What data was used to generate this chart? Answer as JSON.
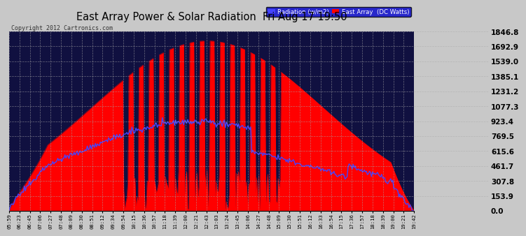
{
  "title": "East Array Power & Solar Radiation  Fri Aug 17 19:50",
  "copyright": "Copyright 2012 Cartronics.com",
  "legend_radiation": "Radiation (w/m2)",
  "legend_array": "East Array  (DC Watts)",
  "y_ticks": [
    0.0,
    153.9,
    307.8,
    461.7,
    615.6,
    769.5,
    923.4,
    1077.3,
    1231.2,
    1385.1,
    1539.0,
    1692.9,
    1846.8
  ],
  "y_max": 1846.8,
  "grid_color": "#888888",
  "red_color": "#ff0000",
  "blue_color": "#4444ff",
  "x_labels": [
    "05:59",
    "06:23",
    "06:45",
    "07:06",
    "07:27",
    "07:48",
    "08:09",
    "08:30",
    "08:51",
    "09:12",
    "09:34",
    "09:54",
    "10:15",
    "10:36",
    "10:57",
    "11:18",
    "11:39",
    "12:00",
    "12:21",
    "12:43",
    "13:03",
    "13:24",
    "13:45",
    "14:06",
    "14:27",
    "14:48",
    "15:09",
    "15:30",
    "15:51",
    "16:12",
    "16:33",
    "16:54",
    "17:15",
    "17:36",
    "17:57",
    "18:18",
    "18:39",
    "19:00",
    "19:21",
    "19:42"
  ]
}
